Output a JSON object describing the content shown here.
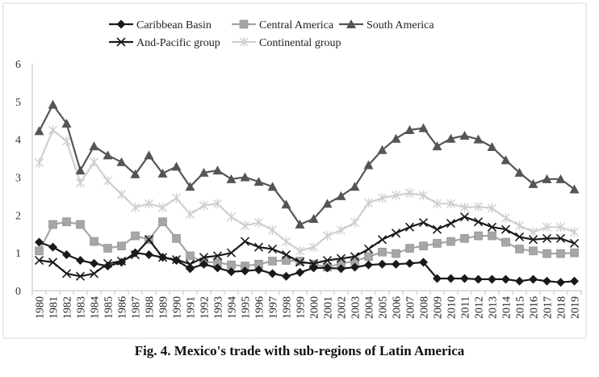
{
  "caption": "Fig. 4. Mexico's trade with sub-regions of Latin America",
  "chart_data": {
    "type": "line",
    "title": "",
    "xlabel": "",
    "ylabel": "",
    "ylim": [
      0,
      6
    ],
    "yticks": [
      "0",
      "1",
      "2",
      "3",
      "4",
      "5",
      "6"
    ],
    "grid": false,
    "legend_position": "top",
    "categories": [
      "1980",
      "1981",
      "1982",
      "1983",
      "1984",
      "1985",
      "1986",
      "1987",
      "1988",
      "1989",
      "1990",
      "1991",
      "1992",
      "1993",
      "1994",
      "1995",
      "1996",
      "1997",
      "1998",
      "1999",
      "2000",
      "2001",
      "2002",
      "2003",
      "2004",
      "2005",
      "2006",
      "2007",
      "2008",
      "2009",
      "2010",
      "2011",
      "2012",
      "2013",
      "2014",
      "2015",
      "2016",
      "2017",
      "2018",
      "2019"
    ],
    "series": [
      {
        "name": "Caribbean Basin",
        "color": "#1a1a1a",
        "marker": "diamond",
        "values": [
          1.28,
          1.15,
          0.95,
          0.8,
          0.72,
          0.65,
          0.75,
          1.0,
          0.95,
          0.88,
          0.8,
          0.58,
          0.7,
          0.6,
          0.5,
          0.52,
          0.55,
          0.45,
          0.38,
          0.48,
          0.6,
          0.6,
          0.58,
          0.62,
          0.68,
          0.7,
          0.7,
          0.72,
          0.75,
          0.32,
          0.32,
          0.32,
          0.3,
          0.3,
          0.3,
          0.25,
          0.3,
          0.25,
          0.22,
          0.25
        ]
      },
      {
        "name": "Central America",
        "color": "#a6a6a6",
        "marker": "square",
        "values": [
          1.05,
          1.75,
          1.82,
          1.75,
          1.3,
          1.12,
          1.18,
          1.45,
          1.35,
          1.82,
          1.38,
          0.92,
          0.75,
          0.75,
          0.68,
          0.65,
          0.7,
          0.78,
          0.8,
          0.78,
          0.7,
          0.62,
          0.72,
          0.78,
          0.9,
          1.02,
          0.98,
          1.12,
          1.18,
          1.25,
          1.3,
          1.38,
          1.45,
          1.45,
          1.28,
          1.1,
          1.05,
          0.98,
          0.98,
          1.0
        ]
      },
      {
        "name": "South America",
        "color": "#555555",
        "marker": "triangle",
        "values": [
          4.22,
          4.92,
          4.42,
          3.18,
          3.82,
          3.58,
          3.4,
          3.08,
          3.58,
          3.1,
          3.28,
          2.75,
          3.12,
          3.18,
          2.95,
          3.0,
          2.88,
          2.75,
          2.28,
          1.75,
          1.9,
          2.3,
          2.5,
          2.75,
          3.32,
          3.72,
          4.02,
          4.25,
          4.3,
          3.82,
          4.02,
          4.1,
          4.0,
          3.8,
          3.45,
          3.12,
          2.82,
          2.95,
          2.95,
          2.68
        ]
      },
      {
        "name": "And-Pacific group",
        "color": "#1a1a1a",
        "marker": "x",
        "values": [
          0.8,
          0.75,
          0.45,
          0.38,
          0.45,
          0.72,
          0.78,
          0.95,
          1.35,
          0.88,
          0.82,
          0.7,
          0.88,
          0.92,
          1.0,
          1.3,
          1.15,
          1.1,
          0.95,
          0.75,
          0.72,
          0.8,
          0.85,
          0.9,
          1.1,
          1.35,
          1.52,
          1.68,
          1.8,
          1.62,
          1.78,
          1.95,
          1.82,
          1.68,
          1.62,
          1.42,
          1.35,
          1.38,
          1.38,
          1.25
        ]
      },
      {
        "name": "Continental group",
        "color": "#cfcfcf",
        "marker": "star",
        "values": [
          3.38,
          4.25,
          3.95,
          2.85,
          3.4,
          2.9,
          2.55,
          2.2,
          2.3,
          2.2,
          2.45,
          2.02,
          2.25,
          2.3,
          1.95,
          1.72,
          1.8,
          1.6,
          1.3,
          1.05,
          1.15,
          1.45,
          1.6,
          1.8,
          2.32,
          2.45,
          2.52,
          2.58,
          2.52,
          2.3,
          2.3,
          2.2,
          2.22,
          2.18,
          1.92,
          1.72,
          1.55,
          1.68,
          1.68,
          1.55
        ]
      }
    ]
  }
}
